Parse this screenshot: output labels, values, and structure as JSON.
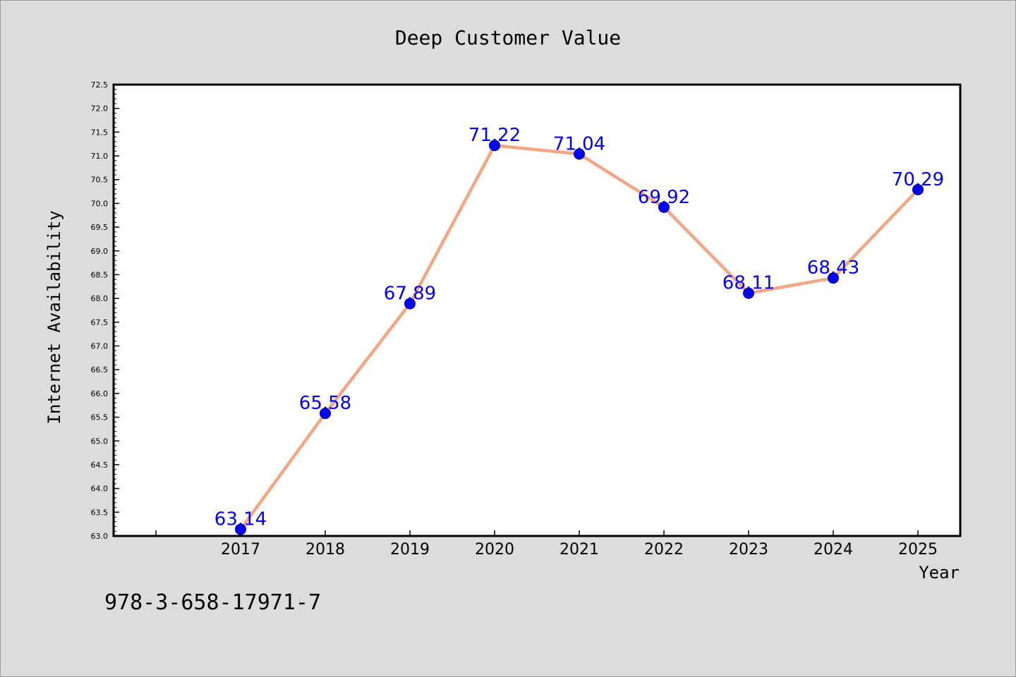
{
  "chart_data": {
    "type": "line",
    "title": "Deep Customer Value",
    "xlabel": "Year",
    "ylabel": "Internet Availability",
    "categories": [
      "2017",
      "2018",
      "2019",
      "2020",
      "2021",
      "2022",
      "2023",
      "2024",
      "2025"
    ],
    "series": [
      {
        "values": [
          63.14,
          65.58,
          67.89,
          71.22,
          71.04,
          69.92,
          68.11,
          68.43,
          70.29
        ],
        "labels": [
          "63.14",
          "65.58",
          "67.89",
          "71.22",
          "71.04",
          "69.92",
          "68.11",
          "68.43",
          "70.29"
        ]
      }
    ],
    "ylim": [
      63.0,
      72.5
    ],
    "yticks": [
      "63.0",
      "63.5",
      "64.0",
      "64.5",
      "65.0",
      "65.5",
      "66.0",
      "66.5",
      "67.0",
      "67.5",
      "68.0",
      "68.5",
      "69.0",
      "69.5",
      "70.0",
      "70.5",
      "71.0",
      "71.5",
      "72.0",
      "72.5"
    ],
    "grid": false,
    "colors": {
      "line": "#f4a582",
      "marker": "#0000ff",
      "label": "#0000ff",
      "background": "#dcdcdc",
      "plot_background": "#ffffff"
    }
  },
  "footer_text": "978-3-658-17971-7"
}
